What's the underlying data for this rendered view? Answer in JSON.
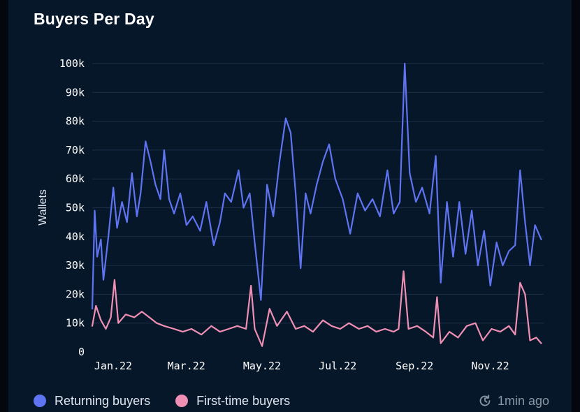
{
  "title": "Buyers Per Day",
  "updated": "1min ago",
  "chart_data": {
    "type": "line",
    "ylabel": "Wallets",
    "xlabel": "",
    "ylim": [
      0,
      100000
    ],
    "yticks": [
      0,
      10000,
      20000,
      30000,
      40000,
      50000,
      60000,
      70000,
      80000,
      90000,
      100000
    ],
    "ytick_labels": [
      "0",
      "10k",
      "20k",
      "30k",
      "40k",
      "50k",
      "60k",
      "70k",
      "80k",
      "90k",
      "100k"
    ],
    "xlim": [
      "2022-01-01",
      "2022-12-31"
    ],
    "xtick_labels": [
      {
        "date": "2022-01-01",
        "label": "Jan.22"
      },
      {
        "date": "2022-03-01",
        "label": "Mar.22"
      },
      {
        "date": "2022-05-01",
        "label": "May.22"
      },
      {
        "date": "2022-07-01",
        "label": "Jul.22"
      },
      {
        "date": "2022-09-01",
        "label": "Sep.22"
      },
      {
        "date": "2022-11-01",
        "label": "Nov.22"
      }
    ],
    "grid": "horizontal",
    "legend_position": "bottom-left",
    "series": [
      {
        "name": "Returning buyers",
        "color": "#5f74f2",
        "points": [
          [
            "2022-01-01",
            15000
          ],
          [
            "2022-01-03",
            49000
          ],
          [
            "2022-01-05",
            33000
          ],
          [
            "2022-01-08",
            39000
          ],
          [
            "2022-01-10",
            25000
          ],
          [
            "2022-01-14",
            40000
          ],
          [
            "2022-01-18",
            57000
          ],
          [
            "2022-01-21",
            43000
          ],
          [
            "2022-01-25",
            52000
          ],
          [
            "2022-01-29",
            45000
          ],
          [
            "2022-02-02",
            62000
          ],
          [
            "2022-02-06",
            47000
          ],
          [
            "2022-02-09",
            55000
          ],
          [
            "2022-02-13",
            73000
          ],
          [
            "2022-02-17",
            66000
          ],
          [
            "2022-02-21",
            58000
          ],
          [
            "2022-02-25",
            53000
          ],
          [
            "2022-02-28",
            70000
          ],
          [
            "2022-03-04",
            53000
          ],
          [
            "2022-03-08",
            48000
          ],
          [
            "2022-03-13",
            55000
          ],
          [
            "2022-03-18",
            44000
          ],
          [
            "2022-03-23",
            47000
          ],
          [
            "2022-03-29",
            42000
          ],
          [
            "2022-04-03",
            52000
          ],
          [
            "2022-04-09",
            37000
          ],
          [
            "2022-04-14",
            45000
          ],
          [
            "2022-04-18",
            55000
          ],
          [
            "2022-04-23",
            52000
          ],
          [
            "2022-04-29",
            63000
          ],
          [
            "2022-05-03",
            50000
          ],
          [
            "2022-05-08",
            55000
          ],
          [
            "2022-05-12",
            38000
          ],
          [
            "2022-05-17",
            18000
          ],
          [
            "2022-05-22",
            58000
          ],
          [
            "2022-05-27",
            47000
          ],
          [
            "2022-06-01",
            66000
          ],
          [
            "2022-06-06",
            81000
          ],
          [
            "2022-06-10",
            76000
          ],
          [
            "2022-06-14",
            55000
          ],
          [
            "2022-06-18",
            29000
          ],
          [
            "2022-06-22",
            55000
          ],
          [
            "2022-06-26",
            48000
          ],
          [
            "2022-07-01",
            58000
          ],
          [
            "2022-07-06",
            66000
          ],
          [
            "2022-07-11",
            72000
          ],
          [
            "2022-07-16",
            60000
          ],
          [
            "2022-07-22",
            53000
          ],
          [
            "2022-07-28",
            41000
          ],
          [
            "2022-08-03",
            55000
          ],
          [
            "2022-08-09",
            49000
          ],
          [
            "2022-08-15",
            53000
          ],
          [
            "2022-08-21",
            47000
          ],
          [
            "2022-08-27",
            63000
          ],
          [
            "2022-09-01",
            48000
          ],
          [
            "2022-09-06",
            52000
          ],
          [
            "2022-09-10",
            100000
          ],
          [
            "2022-09-14",
            62000
          ],
          [
            "2022-09-19",
            52000
          ],
          [
            "2022-09-24",
            57000
          ],
          [
            "2022-09-30",
            48000
          ],
          [
            "2022-10-05",
            68000
          ],
          [
            "2022-10-09",
            24000
          ],
          [
            "2022-10-14",
            52000
          ],
          [
            "2022-10-19",
            33000
          ],
          [
            "2022-10-24",
            52000
          ],
          [
            "2022-10-29",
            34000
          ],
          [
            "2022-11-03",
            49000
          ],
          [
            "2022-11-08",
            30000
          ],
          [
            "2022-11-13",
            42000
          ],
          [
            "2022-11-18",
            23000
          ],
          [
            "2022-11-23",
            38000
          ],
          [
            "2022-11-28",
            30000
          ],
          [
            "2022-12-03",
            35000
          ],
          [
            "2022-12-08",
            37000
          ],
          [
            "2022-12-12",
            63000
          ],
          [
            "2022-12-16",
            45000
          ],
          [
            "2022-12-20",
            30000
          ],
          [
            "2022-12-24",
            44000
          ],
          [
            "2022-12-29",
            39000
          ]
        ]
      },
      {
        "name": "First-time buyers",
        "color": "#f08fb4",
        "points": [
          [
            "2022-01-01",
            9000
          ],
          [
            "2022-01-04",
            16000
          ],
          [
            "2022-01-08",
            11000
          ],
          [
            "2022-01-12",
            8000
          ],
          [
            "2022-01-16",
            12000
          ],
          [
            "2022-01-19",
            25000
          ],
          [
            "2022-01-22",
            10000
          ],
          [
            "2022-01-28",
            13000
          ],
          [
            "2022-02-04",
            12000
          ],
          [
            "2022-02-10",
            14000
          ],
          [
            "2022-02-16",
            12000
          ],
          [
            "2022-02-22",
            10000
          ],
          [
            "2022-02-28",
            9000
          ],
          [
            "2022-03-08",
            8000
          ],
          [
            "2022-03-15",
            7000
          ],
          [
            "2022-03-22",
            8000
          ],
          [
            "2022-03-30",
            6000
          ],
          [
            "2022-04-07",
            9000
          ],
          [
            "2022-04-14",
            7000
          ],
          [
            "2022-04-21",
            8000
          ],
          [
            "2022-04-28",
            9000
          ],
          [
            "2022-05-05",
            8000
          ],
          [
            "2022-05-09",
            23000
          ],
          [
            "2022-05-12",
            8000
          ],
          [
            "2022-05-18",
            2000
          ],
          [
            "2022-05-24",
            15000
          ],
          [
            "2022-05-30",
            9000
          ],
          [
            "2022-06-07",
            14000
          ],
          [
            "2022-06-14",
            8000
          ],
          [
            "2022-06-21",
            9000
          ],
          [
            "2022-06-28",
            7000
          ],
          [
            "2022-07-06",
            11000
          ],
          [
            "2022-07-13",
            9000
          ],
          [
            "2022-07-20",
            8000
          ],
          [
            "2022-07-27",
            10000
          ],
          [
            "2022-08-04",
            8000
          ],
          [
            "2022-08-11",
            9000
          ],
          [
            "2022-08-18",
            7000
          ],
          [
            "2022-08-25",
            8000
          ],
          [
            "2022-09-01",
            7000
          ],
          [
            "2022-09-05",
            8000
          ],
          [
            "2022-09-09",
            28000
          ],
          [
            "2022-09-13",
            8000
          ],
          [
            "2022-09-20",
            9000
          ],
          [
            "2022-09-27",
            7000
          ],
          [
            "2022-10-03",
            5000
          ],
          [
            "2022-10-06",
            19000
          ],
          [
            "2022-10-09",
            3000
          ],
          [
            "2022-10-16",
            7000
          ],
          [
            "2022-10-23",
            5000
          ],
          [
            "2022-10-30",
            9000
          ],
          [
            "2022-11-06",
            10000
          ],
          [
            "2022-11-12",
            4000
          ],
          [
            "2022-11-19",
            8000
          ],
          [
            "2022-11-26",
            7000
          ],
          [
            "2022-12-03",
            9000
          ],
          [
            "2022-12-08",
            6000
          ],
          [
            "2022-12-12",
            24000
          ],
          [
            "2022-12-16",
            20000
          ],
          [
            "2022-12-20",
            4000
          ],
          [
            "2022-12-25",
            5000
          ],
          [
            "2022-12-29",
            3000
          ]
        ]
      }
    ]
  }
}
